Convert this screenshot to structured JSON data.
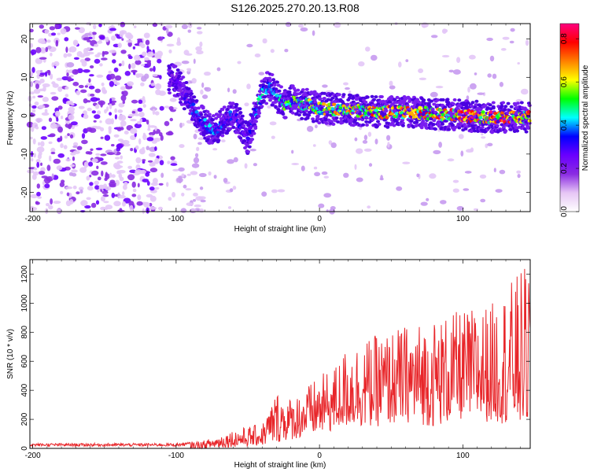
{
  "title": "S126.2025.270.20.13.R08",
  "chart_data": [
    {
      "type": "heatmap",
      "xlabel": "Height of straight line (km)",
      "ylabel": "Frequency (Hz)",
      "xlim": [
        -202,
        147
      ],
      "ylim": [
        -25,
        24
      ],
      "xticks": [
        -200,
        -100,
        0,
        100
      ],
      "yticks": [
        -20,
        -10,
        0,
        10,
        20
      ],
      "colorbar": {
        "label": "Normalized spectral amplitude",
        "range": [
          0.0,
          0.87
        ],
        "ticks": [
          0.0,
          0.2,
          0.4,
          0.6,
          0.8
        ],
        "colors": [
          "#ffffff",
          "#e6c6f5",
          "#8a2be2",
          "#6a00ff",
          "#0000ff",
          "#00ffff",
          "#00ff00",
          "#ffff00",
          "#ff8000",
          "#ff0000",
          "#ff0080"
        ]
      },
      "ridge": {
        "x": [
          -105,
          -100,
          -95,
          -90,
          -85,
          -80,
          -75,
          -70,
          -65,
          -60,
          -55,
          -50,
          -45,
          -40,
          -35,
          -30,
          -25,
          -20,
          -10,
          0,
          20,
          40,
          60,
          80,
          100,
          120,
          147
        ],
        "freq": [
          10,
          9,
          6,
          3,
          0,
          -2,
          -4,
          -3,
          -1,
          0,
          -2,
          -6,
          0,
          6,
          8,
          5,
          3,
          4,
          3,
          2,
          1.5,
          1,
          1,
          0.5,
          0,
          -0.5,
          -0.5
        ],
        "amplitude": [
          0.3,
          0.25,
          0.3,
          0.35,
          0.4,
          0.45,
          0.4,
          0.45,
          0.35,
          0.4,
          0.35,
          0.3,
          0.45,
          0.5,
          0.4,
          0.45,
          0.55,
          0.55,
          0.6,
          0.65,
          0.7,
          0.75,
          0.8,
          0.75,
          0.85,
          0.85,
          0.8
        ]
      }
    },
    {
      "type": "line",
      "xlabel": "Height of straight line (km)",
      "ylabel": "SNR (10 * v/v)",
      "xlim": [
        -202,
        147
      ],
      "ylim": [
        0,
        1300
      ],
      "xticks": [
        -200,
        -100,
        0,
        100
      ],
      "yticks": [
        0,
        200,
        400,
        600,
        800,
        1000,
        1200
      ],
      "color": "#e8262a",
      "envelope": {
        "x": [
          -202,
          -100,
          -80,
          -60,
          -40,
          -30,
          -20,
          -10,
          0,
          10,
          20,
          40,
          60,
          80,
          100,
          120,
          147
        ],
        "low": [
          0,
          0,
          0,
          10,
          20,
          40,
          60,
          80,
          100,
          120,
          150,
          150,
          180,
          150,
          200,
          180,
          150
        ],
        "high": [
          35,
          35,
          55,
          130,
          170,
          400,
          350,
          420,
          500,
          560,
          720,
          780,
          850,
          900,
          950,
          1000,
          1300
        ]
      }
    }
  ]
}
